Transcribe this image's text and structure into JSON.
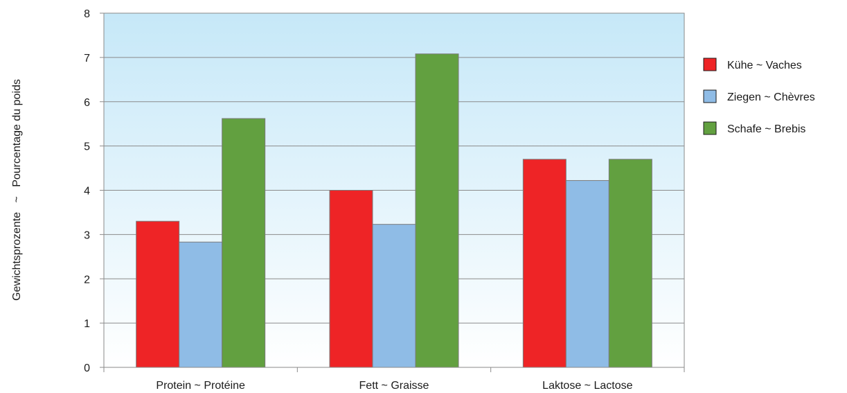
{
  "chart_data": {
    "type": "bar",
    "title": "",
    "xlabel": "",
    "ylabel": "Gewichtsprozente   ~   Pourcentage du poids",
    "ylim": [
      0,
      8
    ],
    "yticks": [
      "0",
      "1",
      "2",
      "3",
      "4",
      "5",
      "6",
      "7",
      "8"
    ],
    "categories": [
      "Protein  ~  Protéine",
      "Fett  ~  Graisse",
      "Laktose  ~  Lactose"
    ],
    "series": [
      {
        "name": "Kühe ~ Vaches",
        "color": "#ee2426",
        "values": [
          3.3,
          4.0,
          4.7
        ]
      },
      {
        "name": "Ziegen ~ Chèvres",
        "color": "#8fbce6",
        "values": [
          2.83,
          3.23,
          4.22
        ]
      },
      {
        "name": "Schafe ~ Brebis",
        "color": "#62a040",
        "values": [
          5.62,
          7.08,
          4.7
        ]
      }
    ],
    "grid": true,
    "legend_position": "right",
    "background": "gradient light blue to white"
  }
}
